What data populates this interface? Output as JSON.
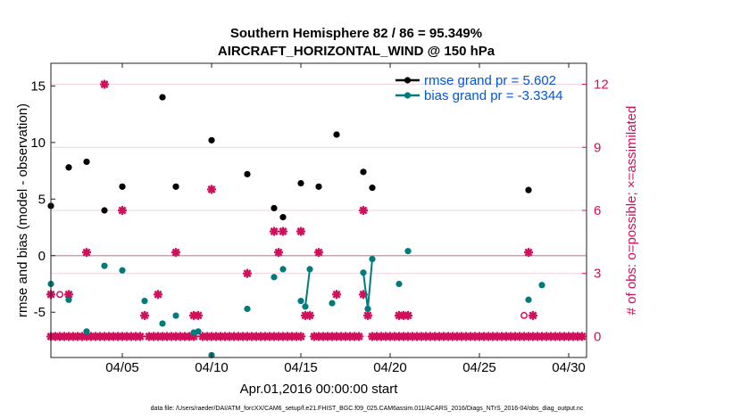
{
  "chart_data": {
    "type": "scatter",
    "title": "Southern Hemisphere 82 / 86 = 95.349%",
    "subtitle": "AIRCRAFT_HORIZONTAL_WIND @ 150 hPa",
    "xlabel": "Apr.01,2016 00:00:00 start",
    "ylabel": "rmse and bias (model - observation)",
    "y2label": "# of obs: o=possible; ×=assimilated",
    "xlim": [
      1,
      31
    ],
    "ylim": [
      -9,
      17
    ],
    "y2lim": [
      -1,
      13
    ],
    "x_ticks": [
      5,
      10,
      15,
      20,
      25,
      30
    ],
    "x_tick_labels": [
      "04/05",
      "04/10",
      "04/15",
      "04/20",
      "04/25",
      "04/30"
    ],
    "y_ticks": [
      -5,
      0,
      5,
      10,
      15
    ],
    "y_tick_labels": [
      "-5",
      "0",
      "5",
      "10",
      "15"
    ],
    "y2_ticks": [
      0,
      3,
      6,
      9,
      12
    ],
    "y2_tick_labels": [
      "0",
      "3",
      "6",
      "9",
      "12"
    ],
    "footer": "data file: /Users/raeder/DAI/ATM_forcXX/CAM6_setup/f.e21.FHIST_BGC.f09_025.CAM6assim.011/ACARS_2016/Diags_NTrS_2016-04/obs_diag_output.nc",
    "colors": {
      "rmse": "#000000",
      "bias": "#007b7b",
      "obs": "#d0105a",
      "zero_line": "#c0a8b0",
      "grid": "#f2cfdc"
    },
    "series": [
      {
        "name": "rmse grand pr = 5.602",
        "axis": "left",
        "points": [
          [
            1,
            4.4
          ],
          [
            2,
            7.8
          ],
          [
            3,
            8.3
          ],
          [
            4,
            4.0
          ],
          [
            5,
            6.1
          ],
          [
            7.25,
            14.0
          ],
          [
            8,
            6.1
          ],
          [
            10,
            10.2
          ],
          [
            12,
            7.2
          ],
          [
            13.5,
            4.2
          ],
          [
            14,
            3.4
          ],
          [
            15,
            6.4
          ],
          [
            16,
            6.1
          ],
          [
            17,
            10.7
          ],
          [
            18.5,
            7.4
          ],
          [
            19,
            6.0
          ],
          [
            27.75,
            5.8
          ]
        ]
      },
      {
        "name": "bias grand pr = -3.3344",
        "axis": "left",
        "points": [
          [
            1,
            -2.5
          ],
          [
            2,
            -3.9
          ],
          [
            3,
            -6.7
          ],
          [
            4,
            -0.9
          ],
          [
            5,
            -1.3
          ],
          [
            6.25,
            -4.0
          ],
          [
            7.25,
            -6.0
          ],
          [
            8,
            -5.3
          ],
          [
            9,
            -6.8
          ],
          [
            9.25,
            -6.7
          ],
          [
            10,
            -8.8
          ],
          [
            12,
            -4.7
          ],
          [
            13.5,
            -1.9
          ],
          [
            14,
            -1.2
          ],
          [
            15,
            -4.0
          ],
          [
            15.25,
            -4.5
          ],
          [
            15.5,
            -1.2
          ],
          [
            16.75,
            -4.2
          ],
          [
            18.5,
            -1.5
          ],
          [
            18.75,
            -4.7
          ],
          [
            19,
            -0.3
          ],
          [
            20.5,
            -2.5
          ],
          [
            21,
            0.4
          ],
          [
            27.75,
            -3.9
          ],
          [
            28.5,
            -2.6
          ]
        ],
        "segments": [
          [
            [
              15.25,
              -4.5
            ],
            [
              15.5,
              -1.2
            ]
          ],
          [
            [
              18.5,
              -1.5
            ],
            [
              18.75,
              -4.7
            ],
            [
              19,
              -0.3
            ]
          ]
        ]
      },
      {
        "name": "obs possible",
        "axis": "right",
        "points": [
          [
            1.5,
            2
          ],
          [
            27.5,
            1
          ]
        ]
      },
      {
        "name": "obs assimilated",
        "axis": "right",
        "points": [
          [
            1,
            2
          ],
          [
            1,
            0
          ],
          [
            1.25,
            0
          ],
          [
            1.5,
            0
          ],
          [
            1.75,
            0
          ],
          [
            2,
            2
          ],
          [
            2,
            0
          ],
          [
            2.25,
            0
          ],
          [
            2.5,
            0
          ],
          [
            2.75,
            0
          ],
          [
            3,
            4
          ],
          [
            3,
            0
          ],
          [
            3.25,
            0
          ],
          [
            3.5,
            0
          ],
          [
            3.75,
            0
          ],
          [
            4,
            12
          ],
          [
            4,
            0
          ],
          [
            4.25,
            0
          ],
          [
            4.5,
            0
          ],
          [
            4.75,
            0
          ],
          [
            5,
            6
          ],
          [
            5,
            0
          ],
          [
            5.25,
            0
          ],
          [
            5.5,
            0
          ],
          [
            5.75,
            0
          ],
          [
            6,
            0
          ],
          [
            6.25,
            1
          ],
          [
            6.5,
            0
          ],
          [
            6.75,
            0
          ],
          [
            7,
            2
          ],
          [
            7,
            0
          ],
          [
            7.25,
            0
          ],
          [
            7.5,
            0
          ],
          [
            7.75,
            0
          ],
          [
            8,
            4
          ],
          [
            8,
            0
          ],
          [
            8.25,
            0
          ],
          [
            8.5,
            0
          ],
          [
            8.75,
            0
          ],
          [
            9,
            1
          ],
          [
            9,
            0
          ],
          [
            9.25,
            1
          ],
          [
            9.5,
            0
          ],
          [
            9.75,
            0
          ],
          [
            10,
            7
          ],
          [
            10,
            0
          ],
          [
            10.25,
            0
          ],
          [
            10.5,
            0
          ],
          [
            10.75,
            0
          ],
          [
            11,
            0
          ],
          [
            11.25,
            0
          ],
          [
            11.5,
            0
          ],
          [
            11.75,
            0
          ],
          [
            12,
            3
          ],
          [
            12,
            0
          ],
          [
            12.25,
            0
          ],
          [
            12.5,
            0
          ],
          [
            12.75,
            0
          ],
          [
            13,
            0
          ],
          [
            13.25,
            0
          ],
          [
            13.5,
            5
          ],
          [
            13.5,
            0
          ],
          [
            13.75,
            4
          ],
          [
            13.75,
            0
          ],
          [
            14,
            5
          ],
          [
            14,
            0
          ],
          [
            14.25,
            0
          ],
          [
            14.5,
            0
          ],
          [
            14.75,
            0
          ],
          [
            15,
            5
          ],
          [
            15,
            0
          ],
          [
            15.25,
            1
          ],
          [
            15.5,
            1
          ],
          [
            15.75,
            0
          ],
          [
            16,
            4
          ],
          [
            16,
            0
          ],
          [
            16.25,
            0
          ],
          [
            16.5,
            0
          ],
          [
            16.75,
            0
          ],
          [
            17,
            2
          ],
          [
            17,
            0
          ],
          [
            17.25,
            0
          ],
          [
            17.5,
            0
          ],
          [
            17.75,
            0
          ],
          [
            18,
            0
          ],
          [
            18.25,
            0
          ],
          [
            18.5,
            6
          ],
          [
            18.5,
            2
          ],
          [
            18.75,
            1
          ],
          [
            19,
            0
          ],
          [
            19.25,
            0
          ],
          [
            19.5,
            0
          ],
          [
            19.75,
            0
          ],
          [
            20,
            0
          ],
          [
            20.25,
            0
          ],
          [
            20.5,
            1
          ],
          [
            20.5,
            0
          ],
          [
            20.75,
            1
          ],
          [
            20.75,
            0
          ],
          [
            21,
            1
          ],
          [
            21,
            0
          ],
          [
            21.25,
            0
          ],
          [
            21.5,
            0
          ],
          [
            21.75,
            0
          ],
          [
            22,
            0
          ],
          [
            22.25,
            0
          ],
          [
            22.5,
            0
          ],
          [
            22.75,
            0
          ],
          [
            23,
            0
          ],
          [
            23.25,
            0
          ],
          [
            23.5,
            0
          ],
          [
            23.75,
            0
          ],
          [
            24,
            0
          ],
          [
            24.25,
            0
          ],
          [
            24.5,
            0
          ],
          [
            24.75,
            0
          ],
          [
            25,
            0
          ],
          [
            25.25,
            0
          ],
          [
            25.5,
            0
          ],
          [
            25.75,
            0
          ],
          [
            26,
            0
          ],
          [
            26.25,
            0
          ],
          [
            26.5,
            0
          ],
          [
            26.75,
            0
          ],
          [
            27,
            0
          ],
          [
            27.25,
            0
          ],
          [
            27.5,
            0
          ],
          [
            27.75,
            4
          ],
          [
            27.75,
            0
          ],
          [
            28,
            1
          ],
          [
            28,
            0
          ],
          [
            28.25,
            0
          ],
          [
            28.5,
            0
          ],
          [
            28.75,
            0
          ],
          [
            29,
            0
          ],
          [
            29.25,
            0
          ],
          [
            29.5,
            0
          ],
          [
            29.75,
            0
          ],
          [
            30,
            0
          ],
          [
            30.25,
            0
          ],
          [
            30.5,
            0
          ],
          [
            30.75,
            0
          ]
        ]
      }
    ]
  }
}
